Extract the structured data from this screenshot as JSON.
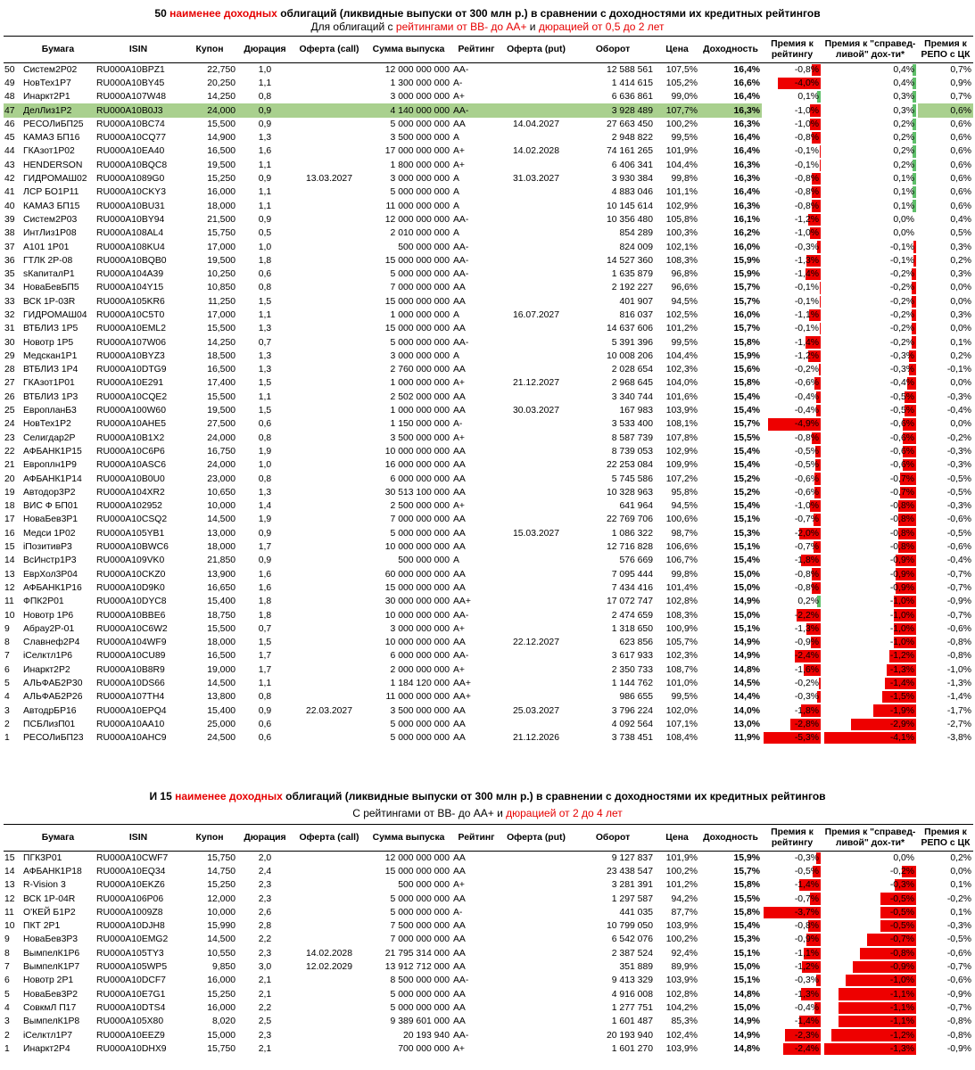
{
  "section1": {
    "title_pre": "50 ",
    "title_red": "наименее доходных",
    "title_post": " облигаций (ликвидные выпуски от 300 млн р.) в сравнении с доходностями их кредитных рейтингов",
    "sub_pre": "Для облигаций с ",
    "sub_red1": "рейтингами от BB- до AA+",
    "sub_mid": " и ",
    "sub_red2": "дюрацией от 0,5 до 2 лет",
    "headers": {
      "num": "",
      "name": "Бумага",
      "isin": "ISIN",
      "coupon": "Купон",
      "duration": "Дюрация",
      "call": "Оферта (call)",
      "issue": "Сумма выпуска",
      "rating": "Рейтинг",
      "put": "Оферта (put)",
      "turnover": "Оборот",
      "price": "Цена",
      "yield": "Доходность",
      "prem_rating_1": "Премия к",
      "prem_rating_2": "рейтингу",
      "prem_fair_1": "Премия к \"справед-",
      "prem_fair_2": "ливой\" дох-ти*",
      "repo_1": "Премия к",
      "repo_2": "РЕПО с ЦК"
    },
    "rows": [
      [
        "50",
        "Систем2Р02",
        "RU000A10BPZ1",
        "22,750",
        "1,0",
        "",
        "12 000 000 000",
        "AA-",
        "",
        "12 588 561",
        "107,5%",
        "16,4%",
        "-0,8%",
        "0,4%",
        "0,7%"
      ],
      [
        "49",
        "НовТех1Р7",
        "RU000A10BY45",
        "20,250",
        "1,1",
        "",
        "1 300 000 000",
        "A-",
        "",
        "1 414 615",
        "105,2%",
        "16,6%",
        "-4,0%",
        "0,4%",
        "0,9%"
      ],
      [
        "48",
        "Инаркт2Р1",
        "RU000A107W48",
        "14,250",
        "0,8",
        "",
        "3 000 000 000",
        "A+",
        "",
        "6 636 861",
        "99,0%",
        "16,4%",
        "0,1%",
        "0,3%",
        "0,7%"
      ],
      [
        "47",
        "ДелЛиз1Р2",
        "RU000A10B0J3",
        "24,000",
        "0,9",
        "",
        "4 140 000 000",
        "AA-",
        "",
        "3 928 489",
        "107,7%",
        "16,3%",
        "-1,0%",
        "0,3%",
        "0,6%"
      ],
      [
        "46",
        "РЕСОЛиБП25",
        "RU000A10BC74",
        "15,500",
        "0,9",
        "",
        "5 000 000 000",
        "AA",
        "14.04.2027",
        "27 663 450",
        "100,2%",
        "16,3%",
        "-1,0%",
        "0,2%",
        "0,6%"
      ],
      [
        "45",
        "КАМАЗ БП16",
        "RU000A10CQ77",
        "14,900",
        "1,3",
        "",
        "3 500 000 000",
        "A",
        "",
        "2 948 822",
        "99,5%",
        "16,4%",
        "-0,8%",
        "0,2%",
        "0,6%"
      ],
      [
        "44",
        "ГКАзот1Р02",
        "RU000A10EA40",
        "16,500",
        "1,6",
        "",
        "17 000 000 000",
        "A+",
        "14.02.2028",
        "74 161 265",
        "101,9%",
        "16,4%",
        "-0,1%",
        "0,2%",
        "0,6%"
      ],
      [
        "43",
        "HENDERSON",
        "RU000A10BQC8",
        "19,500",
        "1,1",
        "",
        "1 800 000 000",
        "A+",
        "",
        "6 406 341",
        "104,4%",
        "16,3%",
        "-0,1%",
        "0,2%",
        "0,6%"
      ],
      [
        "42",
        "ГИДРОМАШ02",
        "RU000A1089G0",
        "15,250",
        "0,9",
        "13.03.2027",
        "3 000 000 000",
        "A",
        "31.03.2027",
        "3 930 384",
        "99,8%",
        "16,3%",
        "-0,8%",
        "0,1%",
        "0,6%"
      ],
      [
        "41",
        "ЛСР БО1Р11",
        "RU000A10CKY3",
        "16,000",
        "1,1",
        "",
        "5 000 000 000",
        "A",
        "",
        "4 883 046",
        "101,1%",
        "16,4%",
        "-0,8%",
        "0,1%",
        "0,6%"
      ],
      [
        "40",
        "КАМАЗ БП15",
        "RU000A10BU31",
        "18,000",
        "1,1",
        "",
        "11 000 000 000",
        "A",
        "",
        "10 145 614",
        "102,9%",
        "16,3%",
        "-0,8%",
        "0,1%",
        "0,6%"
      ],
      [
        "39",
        "Систем2Р03",
        "RU000A10BY94",
        "21,500",
        "0,9",
        "",
        "12 000 000 000",
        "AA-",
        "",
        "10 356 480",
        "105,8%",
        "16,1%",
        "-1,2%",
        "0,0%",
        "0,4%"
      ],
      [
        "38",
        "ИнтЛиз1Р08",
        "RU000A108AL4",
        "15,750",
        "0,5",
        "",
        "2 010 000 000",
        "A",
        "",
        "854 289",
        "100,3%",
        "16,2%",
        "-1,0%",
        "0,0%",
        "0,5%"
      ],
      [
        "37",
        "A101 1P01",
        "RU000A108KU4",
        "17,000",
        "1,0",
        "",
        "500 000 000",
        "AA-",
        "",
        "824 009",
        "102,1%",
        "16,0%",
        "-0,3%",
        "-0,1%",
        "0,3%"
      ],
      [
        "36",
        "ГТЛК 2Р-08",
        "RU000A10BQB0",
        "19,500",
        "1,8",
        "",
        "15 000 000 000",
        "AA-",
        "",
        "14 527 360",
        "108,3%",
        "15,9%",
        "-1,3%",
        "-0,1%",
        "0,2%"
      ],
      [
        "35",
        "sКапиталР1",
        "RU000A104A39",
        "10,250",
        "0,6",
        "",
        "5 000 000 000",
        "AA-",
        "",
        "1 635 879",
        "96,8%",
        "15,9%",
        "-1,4%",
        "-0,2%",
        "0,3%"
      ],
      [
        "34",
        "НоваБевБП5",
        "RU000A104Y15",
        "10,850",
        "0,8",
        "",
        "7 000 000 000",
        "AA",
        "",
        "2 192 227",
        "96,6%",
        "15,7%",
        "-0,1%",
        "-0,2%",
        "0,0%"
      ],
      [
        "33",
        "ВСК 1Р-03R",
        "RU000A105KR6",
        "11,250",
        "1,5",
        "",
        "15 000 000 000",
        "AA",
        "",
        "401 907",
        "94,5%",
        "15,7%",
        "-0,1%",
        "-0,2%",
        "0,0%"
      ],
      [
        "32",
        "ГИДРОМАШ04",
        "RU000A10C5T0",
        "17,000",
        "1,1",
        "",
        "1 000 000 000",
        "A",
        "16.07.2027",
        "816 037",
        "102,5%",
        "16,0%",
        "-1,1%",
        "-0,2%",
        "0,3%"
      ],
      [
        "31",
        "ВТБЛИЗ 1Р5",
        "RU000A10EML2",
        "15,500",
        "1,3",
        "",
        "15 000 000 000",
        "AA",
        "",
        "14 637 606",
        "101,2%",
        "15,7%",
        "-0,1%",
        "-0,2%",
        "0,0%"
      ],
      [
        "30",
        "Новотр 1Р5",
        "RU000A107W06",
        "14,250",
        "0,7",
        "",
        "5 000 000 000",
        "AA-",
        "",
        "5 391 396",
        "99,5%",
        "15,8%",
        "-1,4%",
        "-0,2%",
        "0,1%"
      ],
      [
        "29",
        "Медскан1Р1",
        "RU000A10BYZ3",
        "18,500",
        "1,3",
        "",
        "3 000 000 000",
        "A",
        "",
        "10 008 206",
        "104,4%",
        "15,9%",
        "-1,2%",
        "-0,3%",
        "0,2%"
      ],
      [
        "28",
        "ВТБЛИЗ 1Р4",
        "RU000A10DTG9",
        "16,500",
        "1,3",
        "",
        "2 760 000 000",
        "AA",
        "",
        "2 028 654",
        "102,3%",
        "15,6%",
        "-0,2%",
        "-0,3%",
        "-0,1%"
      ],
      [
        "27",
        "ГКАзот1Р01",
        "RU000A10E291",
        "17,400",
        "1,5",
        "",
        "1 000 000 000",
        "A+",
        "21.12.2027",
        "2 968 645",
        "104,0%",
        "15,8%",
        "-0,6%",
        "-0,4%",
        "0,0%"
      ],
      [
        "26",
        "ВТБЛИЗ 1Р3",
        "RU000A10CQE2",
        "15,500",
        "1,1",
        "",
        "2 502 000 000",
        "AA",
        "",
        "3 340 744",
        "101,6%",
        "15,4%",
        "-0,4%",
        "-0,5%",
        "-0,3%"
      ],
      [
        "25",
        "ЕвропланБ3",
        "RU000A100W60",
        "19,500",
        "1,5",
        "",
        "1 000 000 000",
        "AA",
        "30.03.2027",
        "167 983",
        "103,9%",
        "15,4%",
        "-0,4%",
        "-0,5%",
        "-0,4%"
      ],
      [
        "24",
        "НовТех1Р2",
        "RU000A10AHE5",
        "27,500",
        "0,6",
        "",
        "1 150 000 000",
        "A-",
        "",
        "3 533 400",
        "108,1%",
        "15,7%",
        "-4,9%",
        "-0,6%",
        "0,0%"
      ],
      [
        "23",
        "Селигдар2Р",
        "RU000A10B1X2",
        "24,000",
        "0,8",
        "",
        "3 500 000 000",
        "A+",
        "",
        "8 587 739",
        "107,8%",
        "15,5%",
        "-0,8%",
        "-0,6%",
        "-0,2%"
      ],
      [
        "22",
        "АФБАНК1Р15",
        "RU000A10C6P6",
        "16,750",
        "1,9",
        "",
        "10 000 000 000",
        "AA",
        "",
        "8 739 053",
        "102,9%",
        "15,4%",
        "-0,5%",
        "-0,6%",
        "-0,3%"
      ],
      [
        "21",
        "Европлн1Р9",
        "RU000A10ASC6",
        "24,000",
        "1,0",
        "",
        "16 000 000 000",
        "AA",
        "",
        "22 253 084",
        "109,9%",
        "15,4%",
        "-0,5%",
        "-0,6%",
        "-0,3%"
      ],
      [
        "20",
        "АФБАНК1Р14",
        "RU000A10B0U0",
        "23,000",
        "0,8",
        "",
        "6 000 000 000",
        "AA",
        "",
        "5 745 586",
        "107,2%",
        "15,2%",
        "-0,6%",
        "-0,7%",
        "-0,5%"
      ],
      [
        "19",
        "Автодор3Р2",
        "RU000A104XR2",
        "10,650",
        "1,3",
        "",
        "30 513 100 000",
        "AA",
        "",
        "10 328 963",
        "95,8%",
        "15,2%",
        "-0,6%",
        "-0,7%",
        "-0,5%"
      ],
      [
        "18",
        "ВИС Ф БП01",
        "RU000A102952",
        "10,000",
        "1,4",
        "",
        "2 500 000 000",
        "A+",
        "",
        "641 964",
        "94,5%",
        "15,4%",
        "-1,0%",
        "-0,8%",
        "-0,3%"
      ],
      [
        "17",
        "НоваБев3Р1",
        "RU000A10CSQ2",
        "14,500",
        "1,9",
        "",
        "7 000 000 000",
        "AA",
        "",
        "22 769 706",
        "100,6%",
        "15,1%",
        "-0,7%",
        "-0,8%",
        "-0,6%"
      ],
      [
        "16",
        "Медси 1Р02",
        "RU000A105YB1",
        "13,000",
        "0,9",
        "",
        "5 000 000 000",
        "AA",
        "15.03.2027",
        "1 086 322",
        "98,7%",
        "15,3%",
        "-2,0%",
        "-0,8%",
        "-0,5%"
      ],
      [
        "15",
        "iПозитивР3",
        "RU000A10BWC6",
        "18,000",
        "1,7",
        "",
        "10 000 000 000",
        "AA",
        "",
        "12 716 828",
        "106,6%",
        "15,1%",
        "-0,7%",
        "-0,8%",
        "-0,6%"
      ],
      [
        "14",
        "ВсИнстр1Р3",
        "RU000A109VK0",
        "21,850",
        "0,9",
        "",
        "500 000 000",
        "A",
        "",
        "576 669",
        "106,7%",
        "15,4%",
        "-1,8%",
        "-0,9%",
        "-0,4%"
      ],
      [
        "13",
        "ЕврХол3Р04",
        "RU000A10CKZ0",
        "13,900",
        "1,6",
        "",
        "60 000 000 000",
        "AA",
        "",
        "7 095 444",
        "99,8%",
        "15,0%",
        "-0,8%",
        "-0,9%",
        "-0,7%"
      ],
      [
        "12",
        "АФБАНК1Р16",
        "RU000A10D9K0",
        "16,650",
        "1,6",
        "",
        "15 000 000 000",
        "AA",
        "",
        "7 434 416",
        "101,4%",
        "15,0%",
        "-0,8%",
        "-0,9%",
        "-0,7%"
      ],
      [
        "11",
        "ФПК2Р01",
        "RU000A10DYC8",
        "15,400",
        "1,8",
        "",
        "30 000 000 000",
        "AA+",
        "",
        "17 072 747",
        "102,8%",
        "14,9%",
        "0,2%",
        "-1,0%",
        "-0,9%"
      ],
      [
        "10",
        "Новотр 1Р6",
        "RU000A10BBE6",
        "18,750",
        "1,8",
        "",
        "10 000 000 000",
        "AA-",
        "",
        "2 474 659",
        "108,3%",
        "15,0%",
        "-2,2%",
        "-1,0%",
        "-0,7%"
      ],
      [
        "9",
        "Абрау2Р-01",
        "RU000A10C6W2",
        "15,500",
        "0,7",
        "",
        "3 000 000 000",
        "A+",
        "",
        "1 318 650",
        "100,9%",
        "15,1%",
        "-1,3%",
        "-1,0%",
        "-0,6%"
      ],
      [
        "8",
        "Славнеф2Р4",
        "RU000A104WF9",
        "18,000",
        "1,5",
        "",
        "10 000 000 000",
        "AA",
        "22.12.2027",
        "623 856",
        "105,7%",
        "14,9%",
        "-0,9%",
        "-1,0%",
        "-0,8%"
      ],
      [
        "7",
        "iСелктл1Р6",
        "RU000A10CU89",
        "16,500",
        "1,7",
        "",
        "6 000 000 000",
        "AA-",
        "",
        "3 617 933",
        "102,3%",
        "14,9%",
        "-2,4%",
        "-1,2%",
        "-0,8%"
      ],
      [
        "6",
        "Инаркт2Р2",
        "RU000A10B8R9",
        "19,000",
        "1,7",
        "",
        "2 000 000 000",
        "A+",
        "",
        "2 350 733",
        "108,7%",
        "14,8%",
        "-1,6%",
        "-1,3%",
        "-1,0%"
      ],
      [
        "5",
        "АЛЬФАБ2Р30",
        "RU000A10DS66",
        "14,500",
        "1,1",
        "",
        "1 184 120 000",
        "AA+",
        "",
        "1 144 762",
        "101,0%",
        "14,5%",
        "-0,2%",
        "-1,4%",
        "-1,3%"
      ],
      [
        "4",
        "АЛЬФАБ2Р26",
        "RU000A107TH4",
        "13,800",
        "0,8",
        "",
        "11 000 000 000",
        "AA+",
        "",
        "986 655",
        "99,5%",
        "14,4%",
        "-0,3%",
        "-1,5%",
        "-1,4%"
      ],
      [
        "3",
        "АвтодрБР16",
        "RU000A10EPQ4",
        "15,400",
        "0,9",
        "22.03.2027",
        "3 500 000 000",
        "AA",
        "25.03.2027",
        "3 796 224",
        "102,0%",
        "14,0%",
        "-1,8%",
        "-1,9%",
        "-1,7%"
      ],
      [
        "2",
        "ПСБЛизП01",
        "RU000A10AA10",
        "25,000",
        "0,6",
        "",
        "5 000 000 000",
        "AA",
        "",
        "4 092 564",
        "107,1%",
        "13,0%",
        "-2,8%",
        "-2,9%",
        "-2,7%"
      ],
      [
        "1",
        "РЕСОЛиБП23",
        "RU000A10AHC9",
        "24,500",
        "0,6",
        "",
        "5 000 000 000",
        "AA",
        "21.12.2026",
        "3 738 451",
        "108,4%",
        "11,9%",
        "-5,3%",
        "-4,1%",
        "-3,8%"
      ]
    ]
  },
  "section2": {
    "title_pre": "И 15 ",
    "title_red": "наименее доходных",
    "title_post": " облигаций (ликвидные выпуски от 300 млн р.) в сравнении с доходностями их кредитных рейтингов",
    "sub_pre": "С рейтингами от BB- до AA+ и ",
    "sub_red": "дюрацией от 2 до 4 лет",
    "rows": [
      [
        "15",
        "ПГК3Р01",
        "RU000A10CWF7",
        "15,750",
        "2,0",
        "",
        "12 000 000 000",
        "AA",
        "",
        "9 127 837",
        "101,9%",
        "15,9%",
        "-0,3%",
        "0,0%",
        "0,2%"
      ],
      [
        "14",
        "АФБАНК1Р18",
        "RU000A10EQ34",
        "14,750",
        "2,4",
        "",
        "15 000 000 000",
        "AA",
        "",
        "23 438 547",
        "100,2%",
        "15,7%",
        "-0,5%",
        "-0,2%",
        "0,0%"
      ],
      [
        "13",
        "R-Vision 3",
        "RU000A10EKZ6",
        "15,250",
        "2,3",
        "",
        "500 000 000",
        "A+",
        "",
        "3 281 391",
        "101,2%",
        "15,8%",
        "-1,4%",
        "-0,3%",
        "0,1%"
      ],
      [
        "12",
        "ВСК 1Р-04R",
        "RU000A106P06",
        "12,000",
        "2,3",
        "",
        "5 000 000 000",
        "AA",
        "",
        "1 297 587",
        "94,2%",
        "15,5%",
        "-0,7%",
        "-0,5%",
        "-0,2%"
      ],
      [
        "11",
        "О'КЕЙ Б1Р2",
        "RU000A1009Z8",
        "10,000",
        "2,6",
        "",
        "5 000 000 000",
        "A-",
        "",
        "441 035",
        "87,7%",
        "15,8%",
        "-3,7%",
        "-0,5%",
        "0,1%"
      ],
      [
        "10",
        "ПКТ 2Р1",
        "RU000A10DJH8",
        "15,990",
        "2,8",
        "",
        "7 500 000 000",
        "AA",
        "",
        "10 799 050",
        "103,9%",
        "15,4%",
        "-0,8%",
        "-0,5%",
        "-0,3%"
      ],
      [
        "9",
        "НоваБев3Р3",
        "RU000A10EMG2",
        "14,500",
        "2,2",
        "",
        "7 000 000 000",
        "AA",
        "",
        "6 542 076",
        "100,2%",
        "15,3%",
        "-0,9%",
        "-0,7%",
        "-0,5%"
      ],
      [
        "8",
        "ВымпелК1Р6",
        "RU000A105TY3",
        "10,550",
        "2,3",
        "14.02.2028",
        "21 795 314 000",
        "AA",
        "",
        "2 387 524",
        "92,4%",
        "15,1%",
        "-1,1%",
        "-0,8%",
        "-0,6%"
      ],
      [
        "7",
        "ВымпелК1Р7",
        "RU000A105WP5",
        "9,850",
        "3,0",
        "12.02.2029",
        "13 912 712 000",
        "AA",
        "",
        "351 889",
        "89,9%",
        "15,0%",
        "-1,2%",
        "-0,9%",
        "-0,7%"
      ],
      [
        "6",
        "Новотр 2Р1",
        "RU000A10DCF7",
        "16,000",
        "2,1",
        "",
        "8 500 000 000",
        "AA-",
        "",
        "9 413 329",
        "103,9%",
        "15,1%",
        "-0,3%",
        "-1,0%",
        "-0,6%"
      ],
      [
        "5",
        "НоваБев3Р2",
        "RU000A10E7G1",
        "15,250",
        "2,1",
        "",
        "5 000 000 000",
        "AA",
        "",
        "4 916 008",
        "102,8%",
        "14,8%",
        "-1,3%",
        "-1,1%",
        "-0,9%"
      ],
      [
        "4",
        "СовкмЛ П17",
        "RU000A10DTS4",
        "16,000",
        "2,2",
        "",
        "5 000 000 000",
        "AA",
        "",
        "1 277 751",
        "104,2%",
        "15,0%",
        "-0,4%",
        "-1,1%",
        "-0,7%"
      ],
      [
        "3",
        "ВымпелК1Р8",
        "RU000A105X80",
        "8,020",
        "2,5",
        "",
        "9 389 601 000",
        "AA",
        "",
        "1 601 487",
        "85,3%",
        "14,9%",
        "-1,4%",
        "-1,1%",
        "-0,8%"
      ],
      [
        "2",
        "iСелктл1Р7",
        "RU000A10EEZ9",
        "15,000",
        "2,3",
        "",
        "20 193 940",
        "AA-",
        "",
        "20 193 940",
        "102,4%",
        "14,9%",
        "-2,3%",
        "-1,2%",
        "-0,8%"
      ],
      [
        "1",
        "Инаркт2Р4",
        "RU000A10DHX9",
        "15,750",
        "2,1",
        "",
        "700 000 000",
        "A+",
        "",
        "1 601 270",
        "103,9%",
        "14,8%",
        "-2,4%",
        "-1,3%",
        "-0,9%"
      ]
    ]
  },
  "highlight_index": 3,
  "colors": {
    "accent_red": "#e60000",
    "bar_red": "#ee0000",
    "bar_green": "#5fbf6a",
    "highlight": "#a9d08e"
  }
}
